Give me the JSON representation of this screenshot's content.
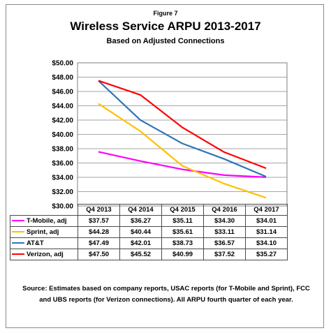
{
  "figure_label": "Figure 7",
  "chart_data": {
    "type": "line",
    "title": "Wireless Service ARPU 2013-2017",
    "subtitle": "Based on Adjusted Connections",
    "categories": [
      "Q4 2013",
      "Q4 2014",
      "Q4 2015",
      "Q4 2016",
      "Q4 2017"
    ],
    "ylim": [
      30,
      50
    ],
    "yticks": [
      "$30.00",
      "$32.00",
      "$34.00",
      "$36.00",
      "$38.00",
      "$40.00",
      "$42.00",
      "$44.00",
      "$46.00",
      "$48.00",
      "$50.00"
    ],
    "grid": true,
    "series": [
      {
        "name": "T-Mobile, adj",
        "color": "#ff00ff",
        "values": [
          37.57,
          36.27,
          35.11,
          34.3,
          34.01
        ],
        "labels": [
          "$37.57",
          "$36.27",
          "$35.11",
          "$34.30",
          "$34.01"
        ]
      },
      {
        "name": "Sprint, adj",
        "color": "#ffc000",
        "values": [
          44.28,
          40.44,
          35.61,
          33.11,
          31.14
        ],
        "labels": [
          "$44.28",
          "$40.44",
          "$35.61",
          "$33.11",
          "$31.14"
        ]
      },
      {
        "name": "AT&T",
        "color": "#2e75b6",
        "values": [
          47.49,
          42.01,
          38.73,
          36.57,
          34.1
        ],
        "labels": [
          "$47.49",
          "$42.01",
          "$38.73",
          "$36.57",
          "$34.10"
        ]
      },
      {
        "name": "Verizon, adj",
        "color": "#ff0000",
        "values": [
          47.5,
          45.52,
          40.99,
          37.52,
          35.27
        ],
        "labels": [
          "$47.50",
          "$45.52",
          "$40.99",
          "$37.52",
          "$35.27"
        ]
      }
    ]
  },
  "source_text": "Source: Estimates based on company reports, USAC reports (for T-Mobile and Sprint), FCC and UBS reports (for Verizon connections). All ARPU fourth quarter of each year."
}
